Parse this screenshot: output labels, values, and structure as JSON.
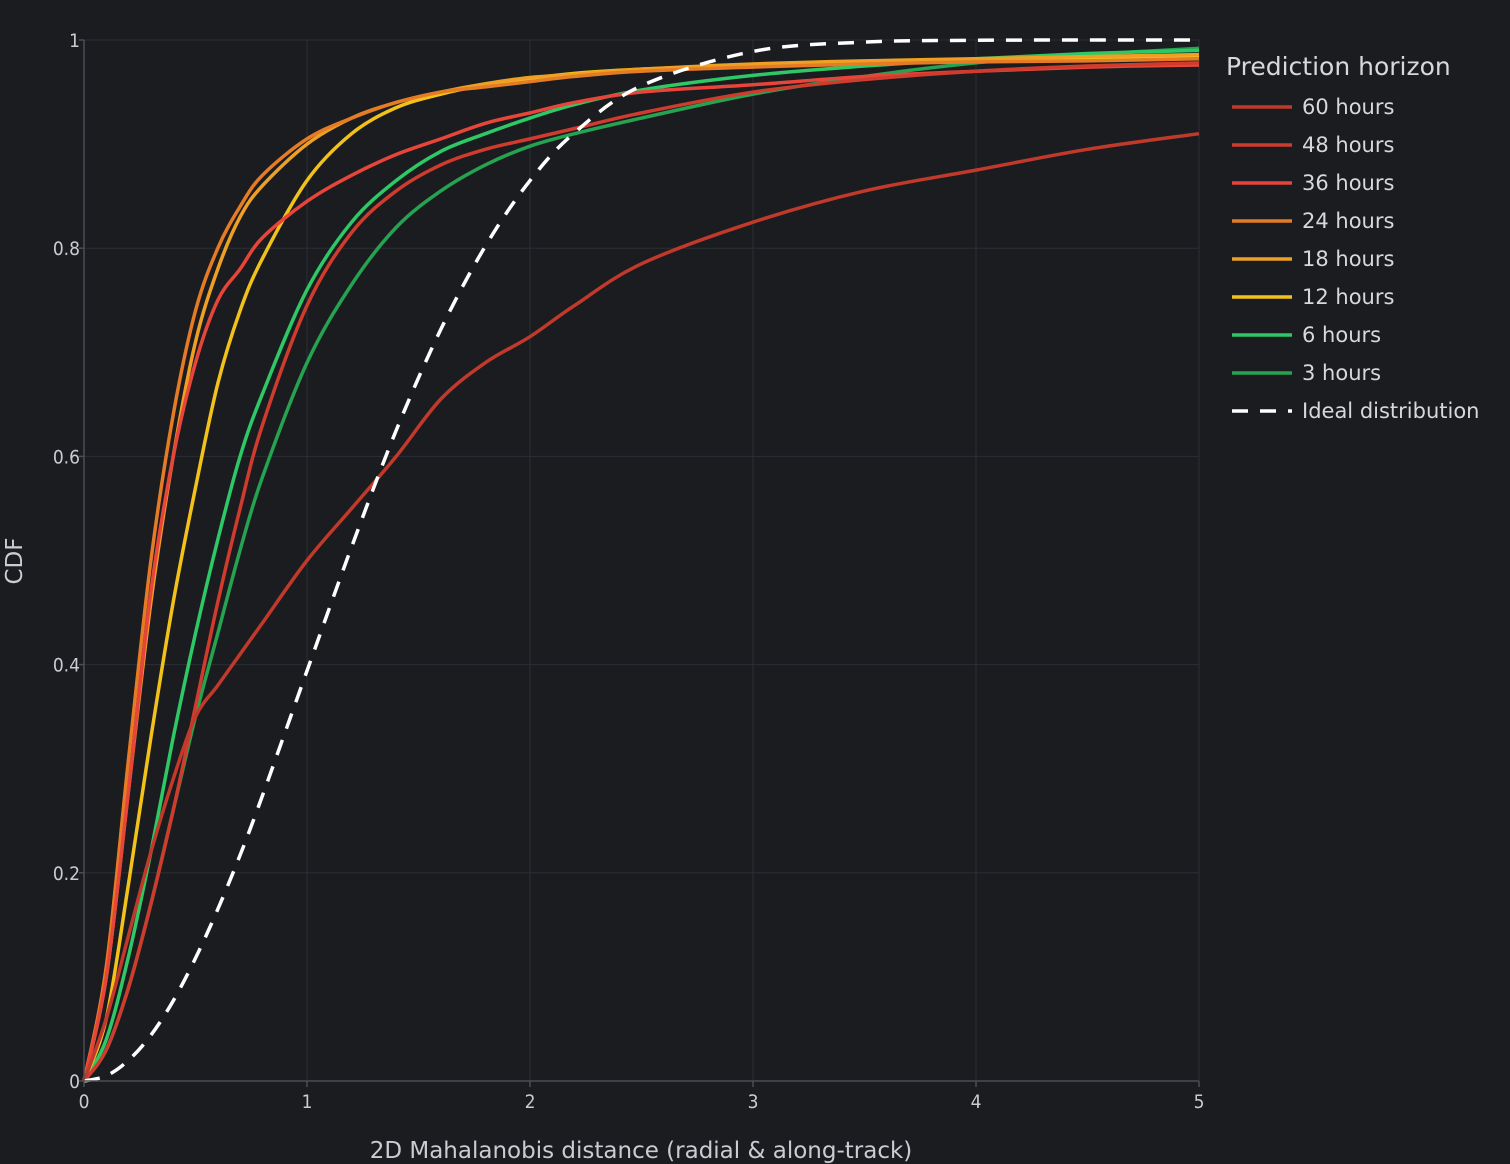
{
  "chart_data": {
    "type": "line",
    "title": "",
    "xlabel": "2D Mahalanobis distance (radial & along-track)",
    "ylabel": "CDF",
    "xlim": [
      0,
      5
    ],
    "ylim": [
      0,
      1
    ],
    "x_ticks": [
      "0",
      "1",
      "2",
      "3",
      "4",
      "5"
    ],
    "y_ticks": [
      "0",
      "0.2",
      "0.4",
      "0.6",
      "0.8",
      "1"
    ],
    "grid": true,
    "legend_title": "Prediction horizon",
    "legend_position": "top-right outside",
    "x": [
      0,
      0.1,
      0.2,
      0.3,
      0.4,
      0.5,
      0.6,
      0.7,
      0.8,
      1.0,
      1.2,
      1.4,
      1.6,
      1.8,
      2.0,
      2.2,
      2.5,
      3.0,
      3.5,
      4.0,
      4.5,
      5.0
    ],
    "series": [
      {
        "name": "60 hours",
        "color": "#c0392b",
        "dash": "solid",
        "values": [
          0,
          0.06,
          0.14,
          0.22,
          0.29,
          0.35,
          0.38,
          0.41,
          0.44,
          0.5,
          0.55,
          0.6,
          0.655,
          0.69,
          0.715,
          0.745,
          0.785,
          0.825,
          0.855,
          0.875,
          0.895,
          0.91
        ]
      },
      {
        "name": "48 hours",
        "color": "#cf3b2c",
        "dash": "solid",
        "values": [
          0,
          0.03,
          0.09,
          0.17,
          0.26,
          0.36,
          0.46,
          0.55,
          0.63,
          0.745,
          0.815,
          0.855,
          0.88,
          0.895,
          0.905,
          0.915,
          0.93,
          0.95,
          0.962,
          0.97,
          0.975,
          0.978
        ]
      },
      {
        "name": "36 hours",
        "color": "#e8453a",
        "dash": "solid",
        "values": [
          0,
          0.1,
          0.28,
          0.47,
          0.6,
          0.69,
          0.75,
          0.78,
          0.81,
          0.845,
          0.87,
          0.89,
          0.905,
          0.92,
          0.93,
          0.94,
          0.95,
          0.957,
          0.965,
          0.97,
          0.974,
          0.976
        ]
      },
      {
        "name": "24 hours",
        "color": "#e57b24",
        "dash": "solid",
        "values": [
          0,
          0.11,
          0.31,
          0.5,
          0.64,
          0.74,
          0.8,
          0.84,
          0.87,
          0.905,
          0.925,
          0.94,
          0.95,
          0.955,
          0.96,
          0.965,
          0.97,
          0.974,
          0.977,
          0.979,
          0.98,
          0.982
        ]
      },
      {
        "name": "18 hours",
        "color": "#eea025",
        "dash": "solid",
        "values": [
          0,
          0.1,
          0.28,
          0.46,
          0.6,
          0.71,
          0.78,
          0.83,
          0.86,
          0.9,
          0.925,
          0.94,
          0.95,
          0.958,
          0.964,
          0.967,
          0.972,
          0.977,
          0.98,
          0.982,
          0.984,
          0.986
        ]
      },
      {
        "name": "12 hours",
        "color": "#f2c21b",
        "dash": "solid",
        "values": [
          0,
          0.06,
          0.19,
          0.33,
          0.46,
          0.57,
          0.67,
          0.74,
          0.79,
          0.865,
          0.91,
          0.935,
          0.948,
          0.957,
          0.963,
          0.968,
          0.972,
          0.976,
          0.979,
          0.981,
          0.983,
          0.985
        ]
      },
      {
        "name": "6 hours",
        "color": "#2ec866",
        "dash": "solid",
        "values": [
          0,
          0.04,
          0.12,
          0.22,
          0.33,
          0.43,
          0.52,
          0.6,
          0.66,
          0.76,
          0.825,
          0.865,
          0.893,
          0.91,
          0.925,
          0.938,
          0.952,
          0.966,
          0.975,
          0.982,
          0.987,
          0.99
        ]
      },
      {
        "name": "3 hours",
        "color": "#25a350",
        "dash": "solid",
        "values": [
          0,
          0.03,
          0.09,
          0.17,
          0.26,
          0.35,
          0.43,
          0.51,
          0.58,
          0.69,
          0.765,
          0.82,
          0.855,
          0.88,
          0.898,
          0.91,
          0.925,
          0.948,
          0.965,
          0.978,
          0.986,
          0.992
        ]
      },
      {
        "name": "Ideal distribution",
        "color": "#ffffff",
        "dash": "dashed",
        "values": [
          0,
          0.005,
          0.02,
          0.044,
          0.077,
          0.118,
          0.165,
          0.217,
          0.274,
          0.394,
          0.513,
          0.625,
          0.722,
          0.802,
          0.865,
          0.911,
          0.956,
          0.989,
          0.998,
          0.9997,
          1.0,
          1.0
        ]
      }
    ]
  }
}
